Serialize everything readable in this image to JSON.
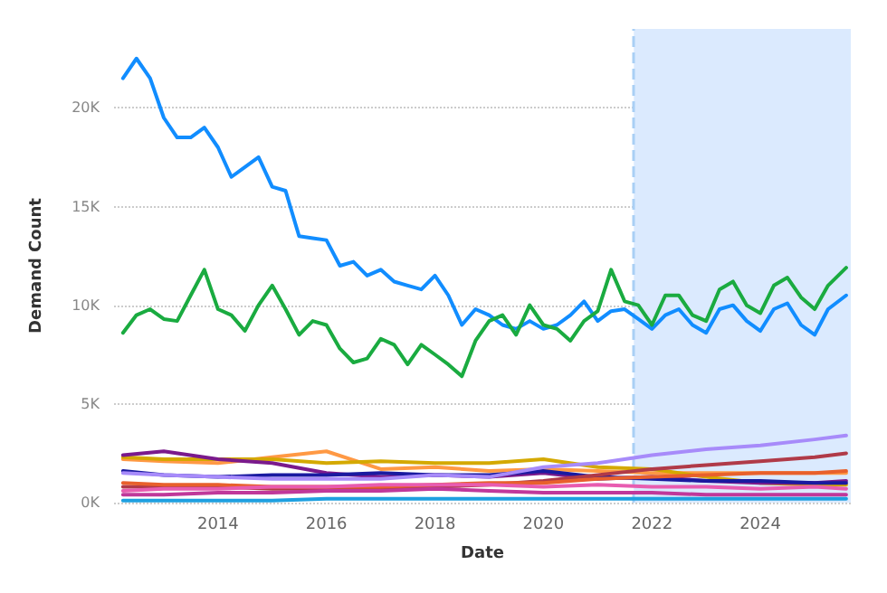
{
  "chart_data": {
    "type": "line",
    "xlabel": "Date",
    "ylabel": "Demand Count",
    "xlim": [
      "2012-02",
      "2025-09"
    ],
    "xticks": [
      "2014",
      "2016",
      "2018",
      "2020",
      "2022",
      "2024"
    ],
    "ylim": [
      0,
      24000
    ],
    "yticks": [
      {
        "value": 0,
        "label": "0K"
      },
      {
        "value": 5000,
        "label": "5K"
      },
      {
        "value": 10000,
        "label": "10K"
      },
      {
        "value": 15000,
        "label": "15K"
      },
      {
        "value": 20000,
        "label": "20K"
      }
    ],
    "grid": "y",
    "marker": "none",
    "line_style": "solid",
    "bands": [
      {
        "axis": "x",
        "from": "2021-09",
        "to": "2025-09",
        "color": "#dbeafe"
      }
    ],
    "ref_lines": [
      {
        "axis": "x",
        "value": "2021-09",
        "color": "#a9cff5",
        "line_style": "dashed"
      }
    ],
    "x": [
      "2012-04",
      "2013-01",
      "2014-01",
      "2015-01",
      "2016-01",
      "2017-01",
      "2018-01",
      "2019-01",
      "2020-01",
      "2021-01",
      "2022-01",
      "2023-01",
      "2024-01",
      "2025-01",
      "2025-08"
    ],
    "series": [
      {
        "color": "#118dff",
        "x": [
          "2012-04",
          "2012-07",
          "2012-10",
          "2013-01",
          "2013-04",
          "2013-07",
          "2013-10",
          "2014-01",
          "2014-04",
          "2014-07",
          "2014-10",
          "2015-01",
          "2015-04",
          "2015-07",
          "2015-10",
          "2016-01",
          "2016-04",
          "2016-07",
          "2016-10",
          "2017-01",
          "2017-04",
          "2017-07",
          "2017-10",
          "2018-01",
          "2018-04",
          "2018-07",
          "2018-10",
          "2019-01",
          "2019-04",
          "2019-07",
          "2019-10",
          "2020-01",
          "2020-04",
          "2020-07",
          "2020-10",
          "2021-01",
          "2021-04",
          "2021-07",
          "2021-10",
          "2022-01",
          "2022-04",
          "2022-07",
          "2022-10",
          "2023-01",
          "2023-04",
          "2023-07",
          "2023-10",
          "2024-01",
          "2024-04",
          "2024-07",
          "2024-10",
          "2025-01",
          "2025-04",
          "2025-08"
        ],
        "values": [
          21500,
          22500,
          21500,
          19500,
          18500,
          18500,
          19000,
          18000,
          16500,
          17000,
          17500,
          16000,
          15800,
          13500,
          13400,
          13300,
          12000,
          12200,
          11500,
          11800,
          11200,
          11000,
          10800,
          11500,
          10500,
          9000,
          9800,
          9500,
          9000,
          8800,
          9200,
          8800,
          9000,
          9500,
          10200,
          9200,
          9700,
          9800,
          9300,
          8800,
          9500,
          9800,
          9000,
          8600,
          9800,
          10000,
          9200,
          8700,
          9800,
          10100,
          9000,
          8500,
          9800,
          10500
        ]
      },
      {
        "color": "#1aab40",
        "x": [
          "2012-04",
          "2012-07",
          "2012-10",
          "2013-01",
          "2013-04",
          "2013-07",
          "2013-10",
          "2014-01",
          "2014-04",
          "2014-07",
          "2014-10",
          "2015-01",
          "2015-04",
          "2015-07",
          "2015-10",
          "2016-01",
          "2016-04",
          "2016-07",
          "2016-10",
          "2017-01",
          "2017-04",
          "2017-07",
          "2017-10",
          "2018-01",
          "2018-04",
          "2018-07",
          "2018-10",
          "2019-01",
          "2019-04",
          "2019-07",
          "2019-10",
          "2020-01",
          "2020-04",
          "2020-07",
          "2020-10",
          "2021-01",
          "2021-04",
          "2021-07",
          "2021-10",
          "2022-01",
          "2022-04",
          "2022-07",
          "2022-10",
          "2023-01",
          "2023-04",
          "2023-07",
          "2023-10",
          "2024-01",
          "2024-04",
          "2024-07",
          "2024-10",
          "2025-01",
          "2025-04",
          "2025-08"
        ],
        "values": [
          8600,
          9500,
          9800,
          9300,
          9200,
          10500,
          11800,
          9800,
          9500,
          8700,
          10000,
          11000,
          9800,
          8500,
          9200,
          9000,
          7800,
          7100,
          7300,
          8300,
          8000,
          7000,
          8000,
          7500,
          7000,
          6400,
          8200,
          9200,
          9500,
          8500,
          10000,
          9000,
          8800,
          8200,
          9200,
          9700,
          11800,
          10200,
          10000,
          9000,
          10500,
          10500,
          9500,
          9200,
          10800,
          11200,
          10000,
          9600,
          11000,
          11400,
          10400,
          9800,
          11000,
          11900
        ]
      },
      {
        "color": "#ff9944",
        "values": [
          2200,
          2100,
          2000,
          2300,
          2600,
          1700,
          1800,
          1600,
          1700,
          1600,
          1500,
          1500,
          1500,
          1500,
          1500
        ]
      },
      {
        "color": "#d4a900",
        "values": [
          2300,
          2200,
          2200,
          2200,
          2000,
          2100,
          2000,
          2000,
          2200,
          1800,
          1700,
          1300,
          1000,
          900,
          900
        ]
      },
      {
        "color": "#7a1a8c",
        "values": [
          2400,
          2600,
          2200,
          2000,
          1500,
          1300,
          1400,
          1300,
          1500,
          1200,
          1300,
          1100,
          1000,
          1000,
          1100
        ]
      },
      {
        "color": "#1a1aa0",
        "values": [
          1600,
          1400,
          1300,
          1400,
          1400,
          1500,
          1400,
          1400,
          1600,
          1300,
          1200,
          1100,
          1100,
          1000,
          1000
        ]
      },
      {
        "color": "#a78bfa",
        "values": [
          1500,
          1400,
          1300,
          1200,
          1200,
          1200,
          1400,
          1300,
          1800,
          2000,
          2400,
          2700,
          2900,
          3200,
          3400
        ]
      },
      {
        "color": "#b03a48",
        "values": [
          800,
          800,
          800,
          700,
          700,
          700,
          800,
          900,
          1100,
          1400,
          1700,
          1900,
          2100,
          2300,
          2500
        ]
      },
      {
        "color": "#e8602c",
        "values": [
          1000,
          900,
          900,
          800,
          800,
          800,
          900,
          1000,
          1000,
          1200,
          1300,
          1400,
          1500,
          1500,
          1600
        ]
      },
      {
        "color": "#e85cb0",
        "values": [
          600,
          700,
          700,
          800,
          800,
          900,
          900,
          900,
          800,
          900,
          800,
          800,
          700,
          800,
          700
        ]
      },
      {
        "color": "#c0389a",
        "values": [
          400,
          400,
          500,
          500,
          600,
          600,
          700,
          600,
          500,
          500,
          500,
          400,
          400,
          400,
          400
        ]
      },
      {
        "color": "#1ea0e0",
        "values": [
          100,
          100,
          100,
          100,
          200,
          200,
          200,
          200,
          200,
          200,
          200,
          200,
          200,
          200,
          200
        ]
      }
    ]
  }
}
